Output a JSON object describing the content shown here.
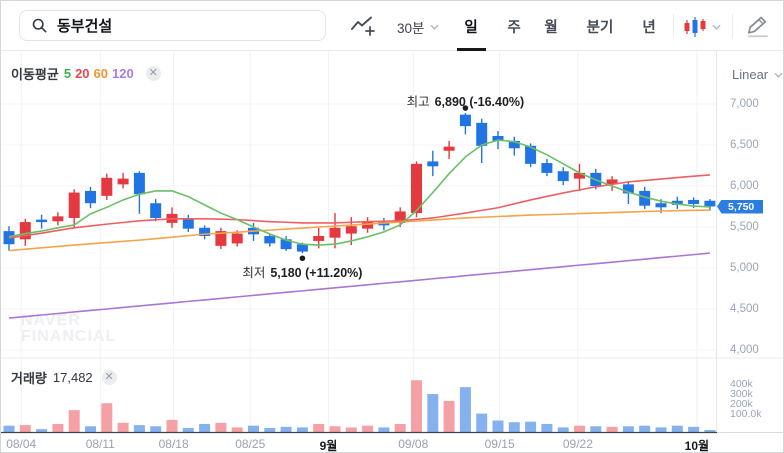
{
  "header": {
    "search": {
      "value": "동부건설"
    },
    "interval_dropdown": "30분",
    "tabs": [
      {
        "label": "일",
        "active": true
      },
      {
        "label": "주",
        "active": false
      },
      {
        "label": "월",
        "active": false
      },
      {
        "label": "분기",
        "active": false
      },
      {
        "label": "년",
        "active": false
      }
    ]
  },
  "ma_legend": {
    "label": "이동평균",
    "periods": [
      {
        "label": "5",
        "color": "#45ab51"
      },
      {
        "label": "20",
        "color": "#e8484d"
      },
      {
        "label": "60",
        "color": "#ef9432"
      },
      {
        "label": "120",
        "color": "#a77ce6"
      }
    ]
  },
  "scale_dropdown": {
    "label": "Linear"
  },
  "volume_legend": {
    "label": "거래량",
    "value": "17,482"
  },
  "watermark": {
    "line1": "NAVER",
    "line2": "FINANCIAL"
  },
  "annotations": {
    "high": {
      "label": "최고",
      "value": "6,890 (-16.40%)"
    },
    "low": {
      "label": "최저",
      "value": "5,180 (+11.20%)"
    }
  },
  "chart_data": {
    "type": "candlestick",
    "title": "동부건설 일봉 차트",
    "price_axis": [
      {
        "label": "7,000",
        "value": 7000
      },
      {
        "label": "6,500",
        "value": 6500
      },
      {
        "label": "6,000",
        "value": 6000
      },
      {
        "label": "5,500",
        "value": 5500
      },
      {
        "label": "5,000",
        "value": 5000
      },
      {
        "label": "4,500",
        "value": 4500
      },
      {
        "label": "4,000",
        "value": 4000
      }
    ],
    "volume_axis": [
      {
        "label": "400k",
        "value": 400000
      },
      {
        "label": "300k",
        "value": 300000
      },
      {
        "label": "200k",
        "value": 200000
      },
      {
        "label": "100.0k",
        "value": 100000
      }
    ],
    "x_axis": [
      {
        "label": "08/04",
        "i": 0.75,
        "emph": false
      },
      {
        "label": "08/11",
        "i": 5.6,
        "emph": false
      },
      {
        "label": "08/18",
        "i": 10.1,
        "emph": false
      },
      {
        "label": "08/25",
        "i": 14.8,
        "emph": false
      },
      {
        "label": "9월",
        "i": 19.6,
        "emph": true
      },
      {
        "label": "09/08",
        "i": 24.8,
        "emph": false
      },
      {
        "label": "09/15",
        "i": 30.1,
        "emph": false
      },
      {
        "label": "09/22",
        "i": 34.9,
        "emph": false
      },
      {
        "label": "10월",
        "i": 42.2,
        "emph": true
      }
    ],
    "last_price": {
      "label": "5,750",
      "value": 5750
    },
    "high_marker": {
      "index": 28,
      "price": 6890
    },
    "low_marker": {
      "index": 18,
      "price": 5180
    },
    "candles_format": [
      "open",
      "high",
      "low",
      "close",
      "volume"
    ],
    "candles": [
      [
        5450,
        5510,
        5210,
        5290,
        55000
      ],
      [
        5350,
        5600,
        5270,
        5560,
        60000
      ],
      [
        5590,
        5650,
        5480,
        5560,
        25000
      ],
      [
        5570,
        5680,
        5520,
        5630,
        70000
      ],
      [
        5610,
        5960,
        5480,
        5920,
        190000
      ],
      [
        5940,
        5990,
        5730,
        5790,
        50000
      ],
      [
        5880,
        6150,
        5830,
        6100,
        250000
      ],
      [
        6020,
        6160,
        5970,
        6090,
        80000
      ],
      [
        6160,
        6180,
        5660,
        5900,
        60000
      ],
      [
        5790,
        5840,
        5570,
        5610,
        50000
      ],
      [
        5550,
        5740,
        5490,
        5660,
        105000
      ],
      [
        5600,
        5650,
        5440,
        5480,
        35000
      ],
      [
        5490,
        5520,
        5350,
        5390,
        70000
      ],
      [
        5270,
        5490,
        5230,
        5450,
        80000
      ],
      [
        5300,
        5460,
        5260,
        5420,
        40000
      ],
      [
        5490,
        5550,
        5330,
        5410,
        55000
      ],
      [
        5390,
        5420,
        5260,
        5300,
        35000
      ],
      [
        5350,
        5390,
        5210,
        5230,
        45000
      ],
      [
        5290,
        5310,
        5180,
        5200,
        40000
      ],
      [
        5330,
        5490,
        5240,
        5390,
        70000
      ],
      [
        5370,
        5670,
        5240,
        5490,
        50000
      ],
      [
        5420,
        5620,
        5280,
        5510,
        40000
      ],
      [
        5480,
        5620,
        5430,
        5570,
        55000
      ],
      [
        5560,
        5610,
        5460,
        5520,
        40000
      ],
      [
        5550,
        5740,
        5500,
        5690,
        70000
      ],
      [
        5670,
        6300,
        5620,
        6270,
        450000
      ],
      [
        6300,
        6430,
        6120,
        6240,
        330000
      ],
      [
        6430,
        6550,
        6330,
        6480,
        270000
      ],
      [
        6870,
        6890,
        6630,
        6730,
        390000
      ],
      [
        6770,
        6820,
        6280,
        6490,
        160000
      ],
      [
        6610,
        6670,
        6450,
        6550,
        100000
      ],
      [
        6550,
        6600,
        6370,
        6460,
        85000
      ],
      [
        6490,
        6520,
        6230,
        6270,
        90000
      ],
      [
        6280,
        6330,
        6120,
        6160,
        70000
      ],
      [
        6180,
        6230,
        6010,
        6060,
        40000
      ],
      [
        6090,
        6270,
        5940,
        6160,
        55000
      ],
      [
        6160,
        6210,
        5960,
        6000,
        50000
      ],
      [
        6020,
        6120,
        5940,
        6080,
        45000
      ],
      [
        6020,
        6060,
        5780,
        5910,
        50000
      ],
      [
        5940,
        5990,
        5720,
        5760,
        55000
      ],
      [
        5790,
        5840,
        5670,
        5740,
        40000
      ],
      [
        5820,
        5870,
        5720,
        5770,
        55000
      ],
      [
        5830,
        5860,
        5730,
        5780,
        45000
      ],
      [
        5820,
        5840,
        5700,
        5750,
        17482
      ]
    ],
    "ma5": [
      5380,
      5420,
      5450,
      5490,
      5525,
      5660,
      5740,
      5830,
      5900,
      5940,
      5940,
      5870,
      5770,
      5670,
      5590,
      5500,
      5415,
      5340,
      5290,
      5280,
      5290,
      5330,
      5380,
      5440,
      5525,
      5700,
      5920,
      6150,
      6355,
      6500,
      6560,
      6540,
      6475,
      6380,
      6270,
      6160,
      6075,
      6000,
      5925,
      5865,
      5815,
      5780,
      5755,
      5745
    ],
    "ma20": [
      5365,
      5395,
      5425,
      5458,
      5490,
      5513,
      5535,
      5555,
      5575,
      5588,
      5600,
      5600,
      5600,
      5595,
      5590,
      5578,
      5565,
      5558,
      5550,
      5550,
      5550,
      5558,
      5565,
      5570,
      5575,
      5593,
      5610,
      5640,
      5670,
      5703,
      5735,
      5783,
      5830,
      5873,
      5915,
      5953,
      5990,
      6020,
      6050,
      6068,
      6085,
      6103,
      6120,
      6135
    ],
    "ma60": [
      5212,
      5229,
      5246,
      5263,
      5280,
      5295,
      5310,
      5325,
      5340,
      5358,
      5376,
      5395,
      5413,
      5425,
      5437,
      5450,
      5462,
      5475,
      5487,
      5500,
      5512,
      5524,
      5536,
      5548,
      5560,
      5573,
      5585,
      5598,
      5610,
      5619,
      5628,
      5636,
      5645,
      5651,
      5657,
      5664,
      5670,
      5676,
      5682,
      5689,
      5695,
      5699,
      5703,
      5707
    ],
    "ma120": [
      4390,
      4408,
      4427,
      4445,
      4464,
      4482,
      4500,
      4519,
      4537,
      4556,
      4574,
      4593,
      4611,
      4629,
      4648,
      4666,
      4685,
      4703,
      4721,
      4740,
      4758,
      4777,
      4795,
      4814,
      4832,
      4850,
      4869,
      4887,
      4906,
      4924,
      4942,
      4961,
      4979,
      4998,
      5016,
      5035,
      5053,
      5071,
      5090,
      5108,
      5127,
      5145,
      5163,
      5182
    ],
    "colors": {
      "up": "#e4393f",
      "down": "#2175e3",
      "vol_up": "#f4a0a5",
      "vol_down": "#85b2ef",
      "ma5": "#6abf69",
      "ma20": "#ee5f64",
      "ma60": "#f4a44a",
      "ma120": "#a876d6"
    },
    "legend_position": "top-left",
    "grid": true
  }
}
